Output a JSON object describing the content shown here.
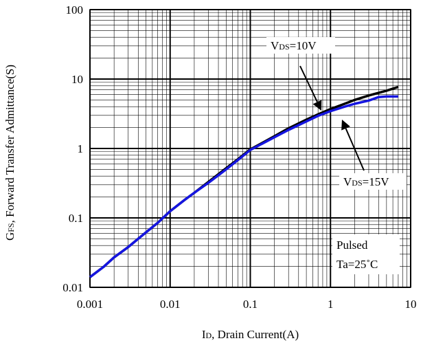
{
  "chart_data": {
    "type": "line",
    "x_scale": "log",
    "y_scale": "log",
    "xlim": [
      0.001,
      10
    ],
    "ylim": [
      0.01,
      100
    ],
    "grid": true,
    "x_ticks": [
      "0.001",
      "0.01",
      "0.1",
      "1",
      "10"
    ],
    "y_ticks": [
      "0.01",
      "0.1",
      "1",
      "10",
      "100"
    ],
    "xlabel": {
      "main": "I",
      "sub": "D",
      "rest": ", Drain Current(A)"
    },
    "ylabel": {
      "main": "G",
      "sub": "FS",
      "rest": ", Forward Transfer Admittance(S)"
    },
    "series": [
      {
        "name": "VDS=10V",
        "label": {
          "main": "V",
          "sub": "DS",
          "rest": "=10V"
        },
        "color": "#000000",
        "points": [
          [
            0.001,
            0.014
          ],
          [
            0.0015,
            0.02
          ],
          [
            0.002,
            0.027
          ],
          [
            0.003,
            0.038
          ],
          [
            0.005,
            0.062
          ],
          [
            0.007,
            0.085
          ],
          [
            0.01,
            0.125
          ],
          [
            0.015,
            0.18
          ],
          [
            0.02,
            0.23
          ],
          [
            0.03,
            0.33
          ],
          [
            0.05,
            0.52
          ],
          [
            0.07,
            0.7
          ],
          [
            0.1,
            0.97
          ],
          [
            0.15,
            1.25
          ],
          [
            0.2,
            1.5
          ],
          [
            0.3,
            1.95
          ],
          [
            0.5,
            2.6
          ],
          [
            0.7,
            3.1
          ],
          [
            1.0,
            3.7
          ],
          [
            1.5,
            4.4
          ],
          [
            2.0,
            5.0
          ],
          [
            3.0,
            5.8
          ],
          [
            5.0,
            6.8
          ],
          [
            7.0,
            7.7
          ]
        ]
      },
      {
        "name": "VDS=15V",
        "label": {
          "main": "V",
          "sub": "DS",
          "rest": "=15V"
        },
        "color": "#1515e0",
        "points": [
          [
            0.001,
            0.014
          ],
          [
            0.0015,
            0.02
          ],
          [
            0.002,
            0.027
          ],
          [
            0.003,
            0.038
          ],
          [
            0.005,
            0.062
          ],
          [
            0.007,
            0.085
          ],
          [
            0.01,
            0.125
          ],
          [
            0.015,
            0.18
          ],
          [
            0.02,
            0.23
          ],
          [
            0.03,
            0.32
          ],
          [
            0.05,
            0.5
          ],
          [
            0.07,
            0.68
          ],
          [
            0.1,
            0.95
          ],
          [
            0.15,
            1.22
          ],
          [
            0.2,
            1.45
          ],
          [
            0.3,
            1.85
          ],
          [
            0.5,
            2.45
          ],
          [
            0.7,
            2.95
          ],
          [
            1.0,
            3.45
          ],
          [
            1.5,
            4.0
          ],
          [
            2.0,
            4.4
          ],
          [
            3.0,
            4.9
          ],
          [
            4.0,
            5.5
          ],
          [
            5.0,
            5.6
          ],
          [
            7.0,
            5.6
          ]
        ]
      }
    ],
    "annotations": [
      {
        "text": "Pulsed"
      },
      {
        "text": "Ta=25˚C"
      }
    ]
  }
}
